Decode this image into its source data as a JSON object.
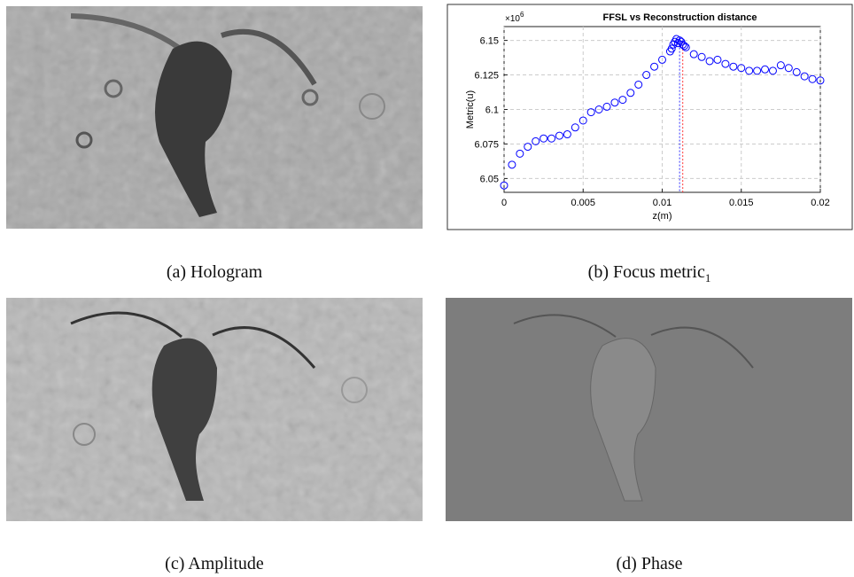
{
  "panels": [
    {
      "caption": "(a) Hologram"
    },
    {
      "caption": "(b) Focus metric",
      "caption_subscript": "1"
    },
    {
      "caption": "(c) Amplitude"
    },
    {
      "caption": "(d) Phase"
    }
  ],
  "chart_data": {
    "type": "scatter",
    "title": "FFSL vs Reconstruction distance",
    "xlabel": "z(m)",
    "ylabel": "Metric(u)",
    "y_multiplier": {
      "base": "×10",
      "exponent": "6"
    },
    "xlim": [
      0,
      0.02
    ],
    "ylim": [
      6.04,
      6.16
    ],
    "xticks": [
      0,
      0.005,
      0.01,
      0.015,
      0.02
    ],
    "yticks": [
      6.05,
      6.075,
      6.1,
      6.125,
      6.15
    ],
    "grid": true,
    "color": "#0000ff",
    "x": [
      0,
      0.0005,
      0.001,
      0.0015,
      0.002,
      0.0025,
      0.003,
      0.0035,
      0.004,
      0.0045,
      0.005,
      0.0055,
      0.006,
      0.0065,
      0.007,
      0.0075,
      0.008,
      0.0085,
      0.009,
      0.0095,
      0.01,
      0.0105,
      0.011,
      0.0115,
      0.012,
      0.0125,
      0.013,
      0.0135,
      0.014,
      0.0145,
      0.015,
      0.0155,
      0.016,
      0.0165,
      0.017,
      0.0175,
      0.018,
      0.0185,
      0.019,
      0.0195,
      0.02,
      0.0106,
      0.0107,
      0.0108,
      0.0109,
      0.0111,
      0.0112,
      0.0113,
      0.0114
    ],
    "values": [
      6.045,
      6.06,
      6.068,
      6.073,
      6.077,
      6.079,
      6.079,
      6.081,
      6.082,
      6.087,
      6.092,
      6.098,
      6.1,
      6.102,
      6.105,
      6.107,
      6.112,
      6.118,
      6.125,
      6.131,
      6.136,
      6.142,
      6.148,
      6.145,
      6.14,
      6.138,
      6.135,
      6.136,
      6.133,
      6.131,
      6.13,
      6.128,
      6.128,
      6.129,
      6.128,
      6.132,
      6.13,
      6.127,
      6.124,
      6.122,
      6.121,
      6.144,
      6.147,
      6.149,
      6.151,
      6.15,
      6.149,
      6.147,
      6.146
    ],
    "vlines": [
      {
        "x": 0.0111,
        "y": 6.15,
        "color": "#3333ff"
      },
      {
        "x": 0.0113,
        "y": 6.149,
        "color": "#ff3333"
      }
    ]
  }
}
